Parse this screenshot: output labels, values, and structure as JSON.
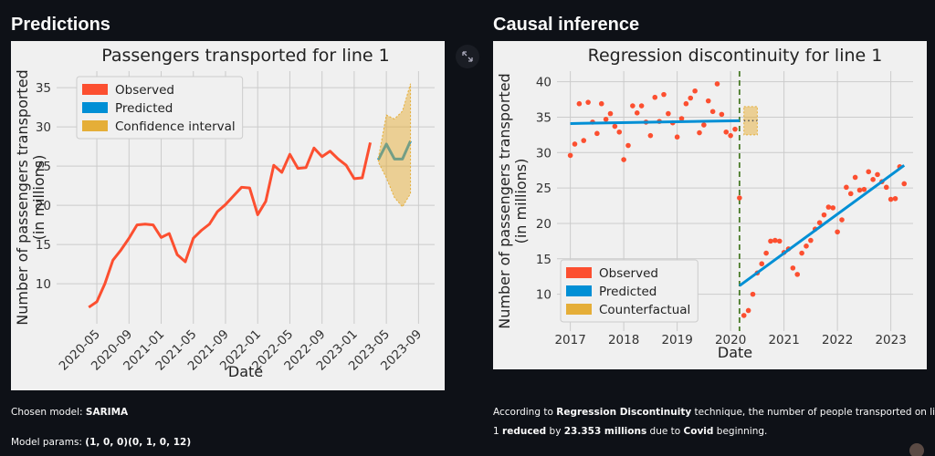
{
  "header": {
    "left_title": "Predictions",
    "right_title": "Causal inference"
  },
  "chart_data": [
    {
      "type": "line",
      "title": "Passengers transported for line 1",
      "xlabel": "Date",
      "ylabel": [
        "Number of passengers transported",
        "(in millions)"
      ],
      "xlim": [
        "2019-12",
        "2023-11"
      ],
      "ylim": [
        4.9,
        37.1
      ],
      "xticks": [
        "2020-05",
        "2020-09",
        "2021-01",
        "2021-05",
        "2021-09",
        "2022-01",
        "2022-05",
        "2022-09",
        "2023-01",
        "2023-05",
        "2023-09"
      ],
      "yticks": [
        10,
        15,
        20,
        25,
        30,
        35
      ],
      "xtick_rotation": 45,
      "grid": true,
      "legend": "upper left",
      "series": [
        {
          "name": "Observed",
          "color": "#fc4f30",
          "x": [
            "2020-04",
            "2020-05",
            "2020-06",
            "2020-07",
            "2020-08",
            "2020-09",
            "2020-10",
            "2020-11",
            "2020-12",
            "2021-01",
            "2021-02",
            "2021-03",
            "2021-04",
            "2021-05",
            "2021-06",
            "2021-07",
            "2021-08",
            "2021-09",
            "2021-10",
            "2021-11",
            "2021-12",
            "2022-01",
            "2022-02",
            "2022-03",
            "2022-04",
            "2022-05",
            "2022-06",
            "2022-07",
            "2022-08",
            "2022-09",
            "2022-10",
            "2022-11",
            "2022-12",
            "2023-01",
            "2023-02",
            "2023-03"
          ],
          "values": [
            7.0,
            7.7,
            10.0,
            13.0,
            14.3,
            15.8,
            17.5,
            17.6,
            17.5,
            15.9,
            16.4,
            13.7,
            12.8,
            15.8,
            16.8,
            17.6,
            19.2,
            20.1,
            21.2,
            22.3,
            22.2,
            18.8,
            20.5,
            25.1,
            24.2,
            26.5,
            24.7,
            24.8,
            27.3,
            26.2,
            26.9,
            25.9,
            25.1,
            23.4,
            23.5,
            28.0
          ]
        },
        {
          "name": "Predicted",
          "color": "#008fd5",
          "x": [
            "2023-04",
            "2023-05",
            "2023-06",
            "2023-07",
            "2023-08"
          ],
          "values": [
            25.8,
            27.8,
            25.9,
            25.9,
            28.2
          ]
        },
        {
          "name": "Confidence interval",
          "color": "#e5ae38",
          "x": [
            "2023-04",
            "2023-05",
            "2023-06",
            "2023-07",
            "2023-08"
          ],
          "lower": [
            25.5,
            23.5,
            21.0,
            19.8,
            21.5
          ],
          "upper": [
            26.0,
            31.5,
            31.0,
            32.0,
            35.5
          ]
        }
      ]
    },
    {
      "type": "scatter",
      "title": "Regression discontinuity for line 1",
      "xlabel": "Date",
      "ylabel": [
        "Number of passengers transported",
        "(in millions)"
      ],
      "xlim": [
        "2016-10",
        "2023-06"
      ],
      "ylim": [
        4.8,
        41.5
      ],
      "xticks": [
        {
          "value": "2017-01",
          "label": "2017"
        },
        {
          "value": "2018-01",
          "label": "2018"
        },
        {
          "value": "2019-01",
          "label": "2019"
        },
        {
          "value": "2020-01",
          "label": "2020"
        },
        {
          "value": "2021-01",
          "label": "2021"
        },
        {
          "value": "2022-01",
          "label": "2022"
        },
        {
          "value": "2023-01",
          "label": "2023"
        }
      ],
      "yticks": [
        10,
        15,
        20,
        25,
        30,
        35,
        40
      ],
      "grid": true,
      "legend": "lower left",
      "cutoff": {
        "x": "2020-03",
        "color": "#4a7c2a"
      },
      "series": [
        {
          "name": "Observed",
          "color": "#fc4f30",
          "x": [
            "2017-01",
            "2017-02",
            "2017-03",
            "2017-04",
            "2017-05",
            "2017-06",
            "2017-07",
            "2017-08",
            "2017-09",
            "2017-10",
            "2017-11",
            "2017-12",
            "2018-01",
            "2018-02",
            "2018-03",
            "2018-04",
            "2018-05",
            "2018-06",
            "2018-07",
            "2018-08",
            "2018-09",
            "2018-10",
            "2018-11",
            "2018-12",
            "2019-01",
            "2019-02",
            "2019-03",
            "2019-04",
            "2019-05",
            "2019-06",
            "2019-07",
            "2019-08",
            "2019-09",
            "2019-10",
            "2019-11",
            "2019-12",
            "2020-01",
            "2020-02",
            "2020-03",
            "2020-04",
            "2020-05",
            "2020-06",
            "2020-07",
            "2020-08",
            "2020-09",
            "2020-10",
            "2020-11",
            "2020-12",
            "2021-01",
            "2021-02",
            "2021-03",
            "2021-04",
            "2021-05",
            "2021-06",
            "2021-07",
            "2021-08",
            "2021-09",
            "2021-10",
            "2021-11",
            "2021-12",
            "2022-01",
            "2022-02",
            "2022-03",
            "2022-04",
            "2022-05",
            "2022-06",
            "2022-07",
            "2022-08",
            "2022-09",
            "2022-10",
            "2022-11",
            "2022-12",
            "2023-01",
            "2023-02",
            "2023-03",
            "2023-04"
          ],
          "values": [
            29.6,
            31.2,
            36.9,
            31.7,
            37.1,
            34.3,
            32.7,
            36.9,
            34.7,
            35.5,
            33.7,
            32.9,
            29.0,
            31.0,
            36.6,
            35.6,
            36.6,
            34.3,
            32.4,
            37.8,
            34.4,
            38.2,
            35.5,
            34.2,
            32.2,
            34.8,
            36.9,
            37.7,
            38.7,
            32.8,
            33.9,
            37.3,
            35.8,
            39.7,
            35.4,
            32.9,
            32.4,
            33.3,
            23.6,
            7.0,
            7.7,
            10.0,
            13.0,
            14.3,
            15.8,
            17.5,
            17.6,
            17.5,
            15.9,
            16.4,
            13.7,
            12.8,
            15.8,
            16.8,
            17.6,
            19.2,
            20.1,
            21.2,
            22.3,
            22.2,
            18.8,
            20.5,
            25.1,
            24.2,
            26.5,
            24.7,
            24.8,
            27.3,
            26.2,
            26.9,
            25.9,
            25.1,
            23.4,
            23.5,
            28.0,
            25.6
          ]
        },
        {
          "name": "Predicted",
          "color": "#008fd5",
          "type": "line",
          "segments": [
            {
              "x": [
                "2017-01",
                "2020-03"
              ],
              "values": [
                34.1,
                34.5
              ]
            },
            {
              "x": [
                "2020-03",
                "2023-04"
              ],
              "values": [
                11.2,
                28.2
              ]
            }
          ]
        },
        {
          "name": "Counterfactual",
          "color": "#e5ae38",
          "type": "line",
          "line_color": "#555555",
          "linestyle": "dotted",
          "x": [
            "2020-04",
            "2020-07"
          ],
          "values": [
            34.5,
            34.5
          ],
          "lower": [
            32.5,
            32.5
          ],
          "upper": [
            36.5,
            36.5
          ]
        }
      ]
    }
  ],
  "notes_left": [
    [
      {
        "text": "Chosen model: "
      },
      {
        "text": "SARIMA",
        "bold": true
      }
    ],
    [
      {
        "text": "Model params: "
      },
      {
        "text": "(1, 0, 0)(0, 1, 0, 12)",
        "bold": true
      }
    ]
  ],
  "notes_right": [
    [
      {
        "text": "According to "
      },
      {
        "text": "Regression Discontinuity",
        "bold": true
      },
      {
        "text": " technique, the number of people transported on line"
      }
    ],
    [
      {
        "text": "1 "
      },
      {
        "text": "reduced",
        "bold": true
      },
      {
        "text": " by "
      },
      {
        "text": "23.353 millions",
        "bold": true
      },
      {
        "text": " due to "
      },
      {
        "text": "Covid",
        "bold": true
      },
      {
        "text": " beginning."
      }
    ]
  ]
}
